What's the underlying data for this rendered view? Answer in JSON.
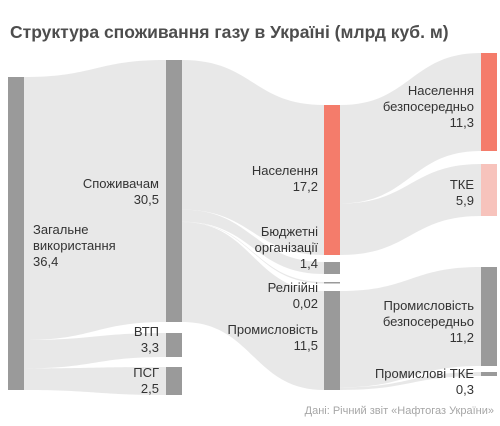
{
  "title": "Структура споживання газу в Україні (млрд куб. м)",
  "source": "Дані: Річний звіт «Нафтогаз України»",
  "colors": {
    "node_gray": "#9a9a9a",
    "households": "#f47c6b",
    "tke_light": "#f7c3bc",
    "flow": "#e4e4e4"
  },
  "chart_data": {
    "type": "sankey",
    "unit": "млрд куб. м",
    "nodes": [
      {
        "id": "total",
        "label": [
          "Загальне",
          "використання"
        ],
        "value": "36,4"
      },
      {
        "id": "consumers",
        "label": [
          "Споживачам"
        ],
        "value": "30,5"
      },
      {
        "id": "vtp",
        "label": [
          "ВТП"
        ],
        "value": "3,3"
      },
      {
        "id": "psg",
        "label": [
          "ПСГ"
        ],
        "value": "2,5"
      },
      {
        "id": "households",
        "label": [
          "Населення"
        ],
        "value": "17,2"
      },
      {
        "id": "budget",
        "label": [
          "Бюджетні",
          "організації"
        ],
        "value": "1,4"
      },
      {
        "id": "religious",
        "label": [
          "Релігійні"
        ],
        "value": "0,02"
      },
      {
        "id": "industry",
        "label": [
          "Промисловість"
        ],
        "value": "11,5"
      },
      {
        "id": "households_direct",
        "label": [
          "Населення",
          "безпосередньо"
        ],
        "value": "11,3"
      },
      {
        "id": "tke",
        "label": [
          "ТКЕ"
        ],
        "value": "5,9"
      },
      {
        "id": "industry_direct",
        "label": [
          "Промисловість",
          "безпосередньо"
        ],
        "value": "11,2"
      },
      {
        "id": "industry_tke",
        "label": [
          "Промислові ТКЕ"
        ],
        "value": "0,3"
      }
    ],
    "links": [
      {
        "source": "total",
        "target": "consumers",
        "value": 30.5
      },
      {
        "source": "total",
        "target": "vtp",
        "value": 3.3
      },
      {
        "source": "total",
        "target": "psg",
        "value": 2.5
      },
      {
        "source": "consumers",
        "target": "households",
        "value": 17.2
      },
      {
        "source": "consumers",
        "target": "budget",
        "value": 1.4
      },
      {
        "source": "consumers",
        "target": "religious",
        "value": 0.02
      },
      {
        "source": "consumers",
        "target": "industry",
        "value": 11.5
      },
      {
        "source": "households",
        "target": "households_direct",
        "value": 11.3
      },
      {
        "source": "households",
        "target": "tke",
        "value": 5.9
      },
      {
        "source": "industry",
        "target": "industry_direct",
        "value": 11.2
      },
      {
        "source": "industry",
        "target": "industry_tke",
        "value": 0.3
      }
    ]
  }
}
